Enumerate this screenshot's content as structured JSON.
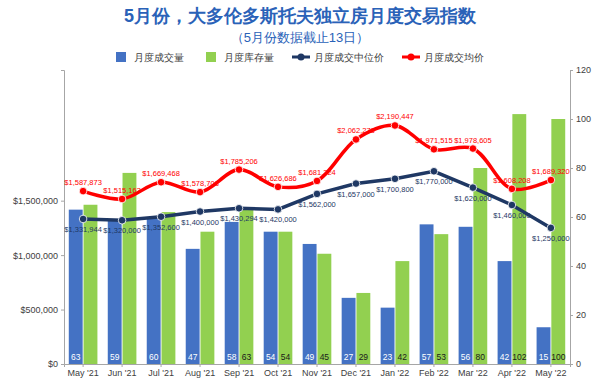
{
  "chart_data": {
    "type": "bar",
    "title": "5月份，大多伦多斯托夫独立房月度交易指数",
    "subtitle": "（5月份数据截止13日）",
    "categories": [
      "May '21",
      "Jun '21",
      "Jul '21",
      "Aug '21",
      "Sep '21",
      "Oct '21",
      "Nov '21",
      "Dec '21",
      "Jan '22",
      "Feb '22",
      "Mar '22",
      "Apr '22",
      "May '22"
    ],
    "series": [
      {
        "name": "月度成交量",
        "type": "bar",
        "axis": "y2",
        "color": "#4472c4",
        "values": [
          63,
          59,
          60,
          47,
          58,
          54,
          49,
          27,
          23,
          57,
          56,
          42,
          15
        ]
      },
      {
        "name": "月度库存量",
        "type": "bar",
        "axis": "y2",
        "color": "#92d050",
        "values": [
          65,
          78,
          62,
          54,
          63,
          54,
          45,
          29,
          42,
          53,
          80,
          102,
          100
        ],
        "value_labels": [
          null,
          null,
          null,
          null,
          "63",
          "54",
          "45",
          "29",
          "42",
          "53",
          "80",
          "102",
          "100"
        ]
      },
      {
        "name": "月度成交中位价",
        "type": "line",
        "color": "#1f3864",
        "marker": "circle",
        "line_style": "solid",
        "values": [
          1331944,
          1320000,
          1352600,
          1400000,
          1430294,
          1420000,
          1562000,
          1657000,
          1700800,
          1770000,
          1620000,
          1460000,
          1250000
        ],
        "value_labels": [
          "$1,331,944",
          "$1,320,000",
          "$1,352,600",
          "$1,400,000",
          "$1,430,294",
          "$1,420,000",
          "$1,562,000",
          "$1,657,000",
          "$1,700,800",
          "$1,770,000",
          "$1,620,000",
          "$1,460,000",
          "$1,250,000"
        ]
      },
      {
        "name": "月度成交均价",
        "type": "line",
        "color": "#ff0000",
        "marker": "circle",
        "line_style": "smooth",
        "values": [
          1587873,
          1515163,
          1669468,
          1578708,
          1785206,
          1626686,
          1681224,
          2062278,
          2190447,
          1971515,
          1978605,
          1608208,
          1689320
        ],
        "value_labels": [
          "$1,587,873",
          "$1,515,163",
          "$1,669,468",
          "$1,578,708",
          "$1,785,206",
          "$1,626,686",
          "$1,681,224",
          "$2,062,278",
          "$2,190,447",
          "$1,971,515",
          "$1,978,605",
          "$1,608,208",
          "$1,689,320"
        ]
      }
    ],
    "ylim": [
      0,
      2700000
    ],
    "yticks": [
      {
        "value": 0,
        "label": "$0"
      },
      {
        "value": 500000,
        "label": "$500,000"
      },
      {
        "value": 1000000,
        "label": "$1,000,000"
      },
      {
        "value": 1500000,
        "label": "$1,500,000"
      }
    ],
    "y2lim": [
      0,
      120
    ],
    "y2ticks": [
      0,
      20,
      40,
      60,
      80,
      100,
      120
    ],
    "data_labels": true,
    "legend": "top",
    "grid": false
  }
}
